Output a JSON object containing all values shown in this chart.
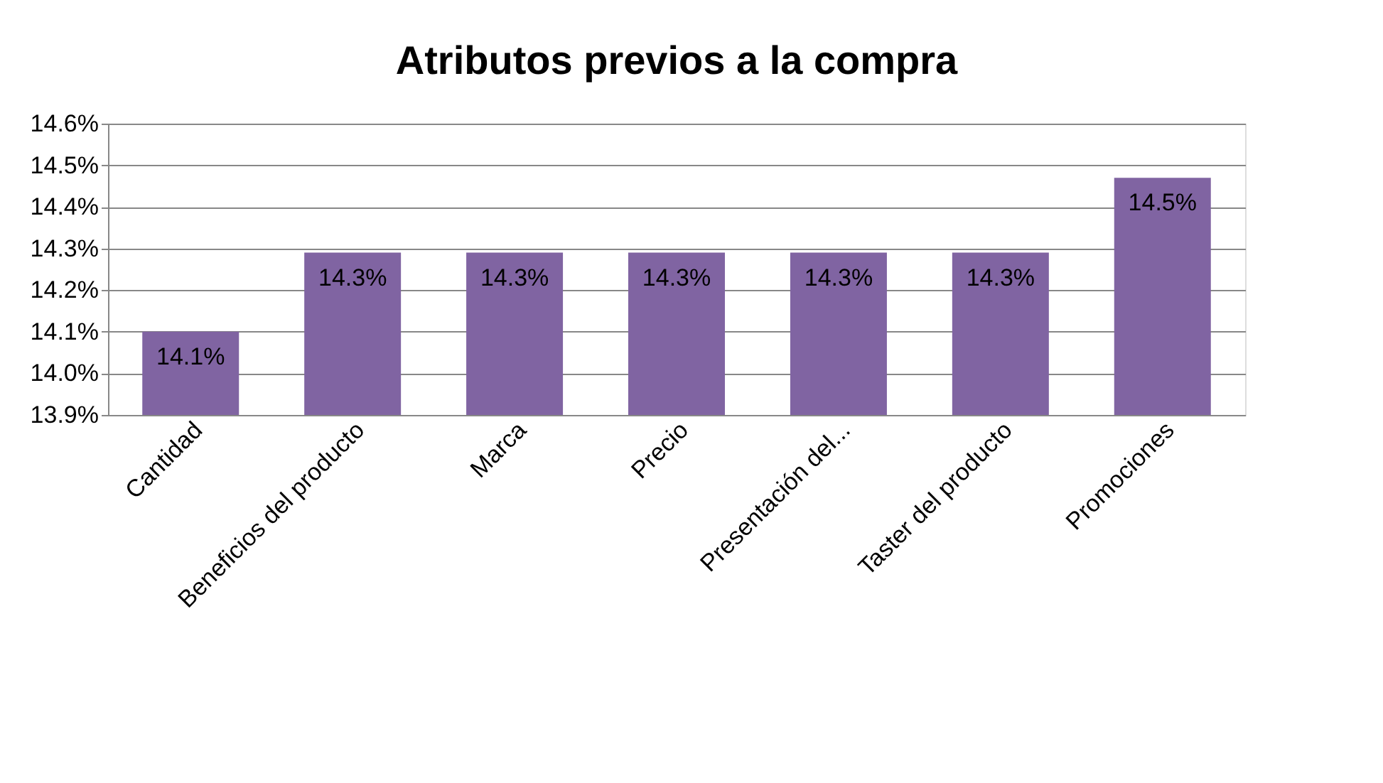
{
  "chart_data": {
    "type": "bar",
    "title": "Atributos previos a la compra",
    "categories": [
      "Cantidad",
      "Beneficios del producto",
      "Marca",
      "Precio",
      "Presentación del...",
      "Taster del producto",
      "Promociones"
    ],
    "values": [
      14.1,
      14.29,
      14.29,
      14.29,
      14.29,
      14.29,
      14.47
    ],
    "value_labels": [
      "14.1%",
      "14.3%",
      "14.3%",
      "14.3%",
      "14.3%",
      "14.3%",
      "14.5%"
    ],
    "color": "#8064a2",
    "ylim": [
      13.9,
      14.6
    ],
    "yticks": [
      {
        "value": 13.9,
        "label": "13.9%"
      },
      {
        "value": 14.0,
        "label": "14.0%"
      },
      {
        "value": 14.1,
        "label": "14.1%"
      },
      {
        "value": 14.2,
        "label": "14.2%"
      },
      {
        "value": 14.3,
        "label": "14.3%"
      },
      {
        "value": 14.4,
        "label": "14.4%"
      },
      {
        "value": 14.5,
        "label": "14.5%"
      },
      {
        "value": 14.6,
        "label": "14.6%"
      }
    ],
    "grid": "y"
  }
}
